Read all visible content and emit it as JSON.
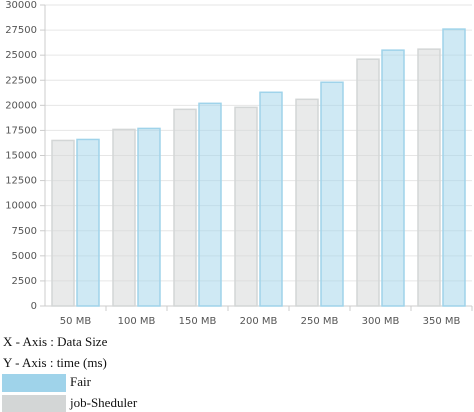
{
  "chart_data": {
    "type": "bar",
    "categories": [
      "50 MB",
      "100 MB",
      "150 MB",
      "200 MB",
      "250 MB",
      "300 MB",
      "350 MB"
    ],
    "series": [
      {
        "name": "Fair",
        "color": "#9fd3ea",
        "values": [
          16600,
          17700,
          20200,
          21300,
          22300,
          25500,
          27600
        ]
      },
      {
        "name": "job-Sheduler",
        "color": "#d3d6d6",
        "values": [
          16500,
          17600,
          19600,
          19800,
          20600,
          24600,
          25600
        ]
      }
    ],
    "ylim": [
      0,
      30000
    ],
    "yticks": [
      0,
      2500,
      5000,
      7500,
      10000,
      12500,
      15000,
      17500,
      20000,
      22500,
      25000,
      27500,
      30000
    ],
    "grid": true,
    "x_label": "X - Axis : Data Size",
    "y_label": "Y - Axis : time (ms)"
  }
}
